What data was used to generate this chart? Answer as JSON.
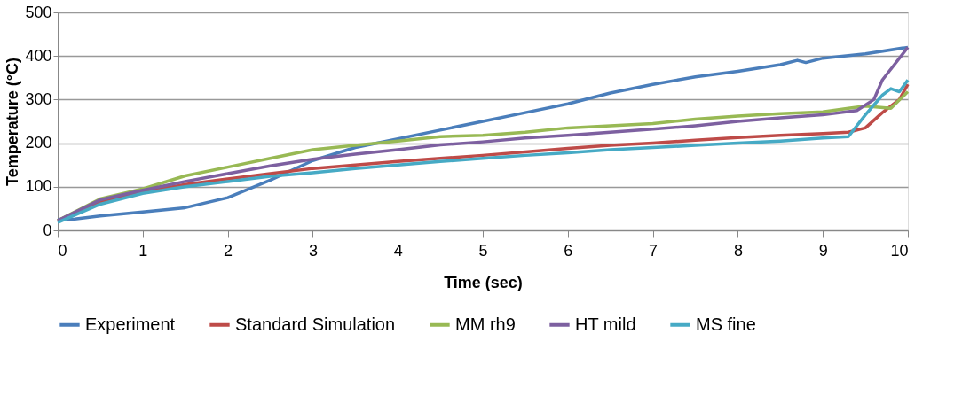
{
  "chart_data": {
    "type": "line",
    "xlabel": "Time (sec)",
    "ylabel": "Temperature (°C)",
    "xlim": [
      0,
      10
    ],
    "xticks": [
      0,
      1,
      2,
      3,
      4,
      5,
      6,
      7,
      8,
      9,
      10
    ],
    "ylim": [
      0,
      500
    ],
    "yticks": [
      0,
      100,
      200,
      300,
      400,
      500
    ],
    "grid": "y",
    "legend": "bottom",
    "marker": "none",
    "line_style": "solid",
    "series": [
      {
        "name": "Experiment",
        "color": "#4a7ebb",
        "x": [
          0,
          0.2,
          0.5,
          1,
          1.5,
          2,
          2.5,
          3,
          3.5,
          4,
          4.5,
          5,
          5.5,
          6,
          6.5,
          7,
          7.5,
          8,
          8.5,
          8.7,
          8.8,
          9,
          9.5,
          10
        ],
        "values": [
          25,
          26,
          33,
          42,
          52,
          75,
          115,
          160,
          190,
          210,
          230,
          250,
          270,
          290,
          315,
          335,
          352,
          365,
          380,
          390,
          385,
          395,
          405,
          420
        ]
      },
      {
        "name": "Standard Simulation",
        "color": "#be4b48",
        "x": [
          0,
          0.5,
          1,
          1.5,
          2,
          2.5,
          3,
          3.5,
          4,
          4.5,
          5,
          5.5,
          6,
          6.5,
          7,
          7.5,
          8,
          8.5,
          9,
          9.3,
          9.5,
          9.7,
          9.9,
          10
        ],
        "values": [
          22,
          65,
          88,
          105,
          118,
          130,
          142,
          150,
          158,
          165,
          172,
          180,
          188,
          195,
          200,
          207,
          213,
          218,
          222,
          225,
          235,
          270,
          300,
          335
        ]
      },
      {
        "name": "MM rh9",
        "color": "#98b954",
        "x": [
          0,
          0.5,
          1,
          1.5,
          2,
          2.5,
          3,
          3.5,
          4,
          4.5,
          5,
          5.5,
          6,
          6.5,
          7,
          7.5,
          8,
          8.5,
          9,
          9.3,
          9.5,
          9.8,
          10
        ],
        "values": [
          22,
          72,
          95,
          125,
          145,
          165,
          185,
          195,
          205,
          215,
          218,
          225,
          235,
          240,
          245,
          255,
          262,
          268,
          272,
          280,
          285,
          280,
          318
        ]
      },
      {
        "name": "HT mild",
        "color": "#7d60a0",
        "x": [
          0,
          0.5,
          1,
          1.5,
          2,
          2.5,
          3,
          3.5,
          4,
          4.5,
          5,
          5.5,
          6,
          6.5,
          7,
          7.5,
          8,
          8.5,
          9,
          9.4,
          9.6,
          9.7,
          9.8,
          10
        ],
        "values": [
          22,
          70,
          92,
          112,
          130,
          148,
          163,
          175,
          185,
          196,
          203,
          212,
          218,
          225,
          232,
          240,
          250,
          258,
          265,
          275,
          300,
          345,
          370,
          420
        ]
      },
      {
        "name": "MS fine",
        "color": "#46aac5",
        "x": [
          0,
          0.5,
          1,
          1.5,
          2,
          2.5,
          3,
          3.5,
          4,
          4.5,
          5,
          5.5,
          6,
          6.5,
          7,
          7.5,
          8,
          8.5,
          9,
          9.3,
          9.5,
          9.7,
          9.8,
          9.9,
          10
        ],
        "values": [
          18,
          60,
          85,
          100,
          112,
          124,
          132,
          142,
          150,
          158,
          165,
          172,
          178,
          185,
          190,
          195,
          200,
          205,
          212,
          215,
          265,
          310,
          325,
          318,
          345
        ]
      }
    ]
  }
}
